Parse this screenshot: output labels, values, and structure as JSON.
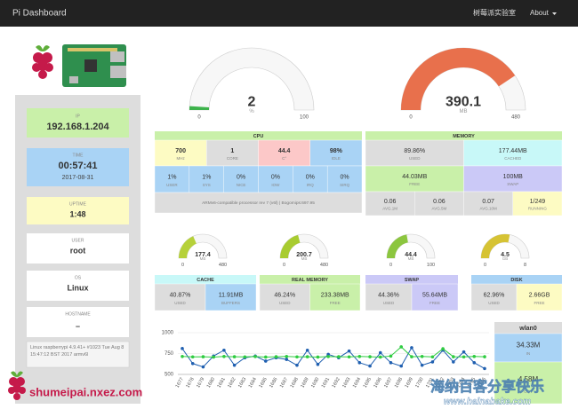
{
  "navbar": {
    "brand": "Pi Dashboard",
    "links": [
      "树莓派实验室",
      "About"
    ]
  },
  "sidebar": {
    "ip": {
      "label": "IP",
      "value": "192.168.1.204"
    },
    "time": {
      "label": "TIME",
      "value": "00:57:41",
      "date": "2017-08-31"
    },
    "uptime": {
      "label": "UPTIME",
      "value": "1:48"
    },
    "user": {
      "label": "USER",
      "value": "root"
    },
    "os": {
      "label": "OS",
      "value": "Linux"
    },
    "hostname": {
      "label": "HOSTNAME",
      "value": "–"
    },
    "uname": "Linux raspberrypi 4.9.41+ #1023 Tue Aug 8 15:47:12 BST 2017 armv6l"
  },
  "gauges": [
    {
      "value": 2,
      "unit": "%",
      "min": 0,
      "max": 100,
      "color": "#3db24b"
    },
    {
      "value": 390.1,
      "unit": "MB",
      "min": 0,
      "max": 480,
      "color": "#e8704c"
    },
    {
      "value": 177.4,
      "unit": "MB",
      "min": 0,
      "max": 480,
      "color": "#b6d13a"
    },
    {
      "value": 200.7,
      "unit": "MB",
      "min": 0,
      "max": 480,
      "color": "#a8cc30"
    },
    {
      "value": 44.4,
      "unit": "MB",
      "min": 0,
      "max": 100,
      "color": "#8cc63f"
    },
    {
      "value": 4.5,
      "unit": "GB",
      "min": 0,
      "max": 8,
      "color": "#d6c334"
    }
  ],
  "panels": [
    {
      "title": "CPU",
      "color": "#c9f0a9",
      "rows": [
        [
          {
            "value": "700",
            "label": "MHz",
            "color": "#fdfbc3"
          },
          {
            "value": "1",
            "label": "CORE",
            "color": "#dddddd"
          },
          {
            "value": "44.4",
            "label": "C°",
            "color": "#fcc8c8"
          },
          {
            "value": "98%",
            "label": "IDLE",
            "color": "#a9d3f5"
          }
        ],
        [
          {
            "value": "1%",
            "label": "USER",
            "color": "#a9d3f5"
          },
          {
            "value": "1%",
            "label": "SYS",
            "color": "#a9d3f5"
          },
          {
            "value": "0%",
            "label": "NICE",
            "color": "#a9d3f5"
          },
          {
            "value": "0%",
            "label": "IOW",
            "color": "#a9d3f5"
          },
          {
            "value": "0%",
            "label": "IRQ",
            "color": "#a9d3f5"
          },
          {
            "value": "0%",
            "label": "SIRQ",
            "color": "#a9d3f5"
          }
        ],
        [
          {
            "value": "ARMv6-compatible processor rev 7 (v6l) | Bogomips:697.95",
            "color": "#dddddd"
          }
        ]
      ]
    },
    {
      "title": "MEMORY",
      "color": "#c9f0a9",
      "rows": [
        [
          {
            "value": "89.86%",
            "label": "USED",
            "color": "#dddddd"
          },
          {
            "value": "177.44MB",
            "label": "CACHED",
            "color": "#c8f8f8"
          }
        ],
        [
          {
            "value": "44.03MB",
            "label": "FREE",
            "color": "#c9f0a9"
          },
          {
            "value": "100MB",
            "label": "SWAP",
            "color": "#cbc9f7"
          }
        ],
        [
          {
            "value": "0.06",
            "label": "AVG.1M",
            "color": "#dddddd"
          },
          {
            "value": "0.06",
            "label": "AVG.5M",
            "color": "#dddddd"
          },
          {
            "value": "0.07",
            "label": "AVG.10M",
            "color": "#dddddd"
          },
          {
            "value": "1/249",
            "label": "RUNNING",
            "color": "#fdfbc3"
          }
        ]
      ]
    },
    {
      "title": "CACHE",
      "color": "#c8f8f8",
      "rows": [
        [
          {
            "value": "40.87%",
            "label": "USED",
            "color": "#dddddd"
          },
          {
            "value": "11.91MB",
            "label": "BUFFERS",
            "color": "#a9d3f5"
          }
        ]
      ]
    },
    {
      "title": "REAL MEMORY",
      "color": "#c9f0a9",
      "rows": [
        [
          {
            "value": "46.24%",
            "label": "USED",
            "color": "#dddddd"
          },
          {
            "value": "233.38MB",
            "label": "FREE",
            "color": "#c9f0a9"
          }
        ]
      ]
    },
    {
      "title": "SWAP",
      "color": "#cbc9f7",
      "rows": [
        [
          {
            "value": "44.36%",
            "label": "USED",
            "color": "#dddddd"
          },
          {
            "value": "55.64MB",
            "label": "FREE",
            "color": "#cbc9f7"
          }
        ]
      ]
    },
    {
      "title": "DISK",
      "color": "#a9d3f5",
      "rows": [
        [
          {
            "value": "62.96%",
            "label": "USED",
            "color": "#dddddd"
          },
          {
            "value": "2.66GB",
            "label": "FREE",
            "color": "#fdfbc3"
          }
        ]
      ]
    },
    {
      "title": "wlan0",
      "color": "#dddddd",
      "rows": [
        [
          {
            "value": "34.33M",
            "label": "IN",
            "color": "#a9d3f5"
          }
        ],
        [
          {
            "value": "4.58M",
            "label": "OUT",
            "color": "#c9f0a9"
          }
        ]
      ]
    }
  ],
  "chart_data": {
    "type": "line",
    "categories": [
      "1677",
      "1678",
      "1679",
      "1680",
      "1681",
      "1682",
      "1683",
      "1684",
      "1685",
      "1686",
      "1687",
      "1688",
      "1689",
      "1690",
      "1691",
      "1692",
      "1693",
      "1694",
      "1695",
      "1696",
      "1697",
      "1698",
      "1699",
      "1700",
      "1701",
      "1702",
      "1703",
      "1704",
      "1705",
      "1706"
    ],
    "series": [
      {
        "color": "#1f5fb0",
        "values": [
          810,
          630,
          590,
          720,
          790,
          610,
          700,
          720,
          660,
          700,
          680,
          610,
          790,
          620,
          740,
          700,
          780,
          640,
          600,
          760,
          640,
          600,
          820,
          610,
          650,
          790,
          650,
          770,
          640,
          570
        ]
      },
      {
        "color": "#2ecc40",
        "values": [
          715,
          710,
          712,
          708,
          715,
          712,
          710,
          714,
          708,
          712,
          715,
          710,
          712,
          708,
          714,
          712,
          710,
          715,
          712,
          708,
          720,
          830,
          712,
          715,
          710,
          808,
          712,
          710,
          715,
          712
        ]
      }
    ],
    "ylim": [
      500,
      1000
    ],
    "yticks": [
      500,
      750,
      1000
    ],
    "grid": true
  },
  "footer_logo": "shumeipai.nxez.com",
  "watermark": {
    "text": "海纳百客分享快乐",
    "url": "www.hainabake.com"
  }
}
